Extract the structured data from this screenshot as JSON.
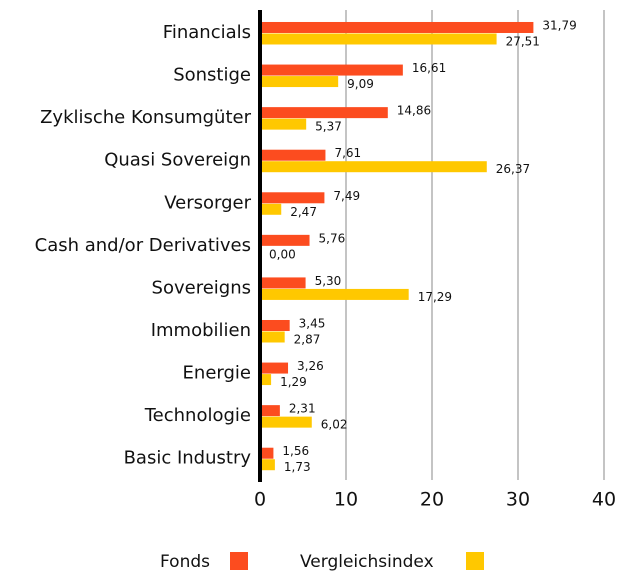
{
  "chart_data": {
    "type": "bar",
    "orientation": "horizontal",
    "categories": [
      "Financials",
      "Sonstige",
      "Zyklische Konsumgüter",
      "Quasi Sovereign",
      "Versorger",
      "Cash and/or Derivatives",
      "Sovereigns",
      "Immobilien",
      "Energie",
      "Technologie",
      "Basic Industry"
    ],
    "series": [
      {
        "name": "Fonds",
        "color": "#fc4c1f",
        "values": [
          31.79,
          16.61,
          14.86,
          7.61,
          7.49,
          5.76,
          5.3,
          3.45,
          3.26,
          2.31,
          1.56
        ],
        "value_labels": [
          "31,79",
          "16,61",
          "14,86",
          "7,61",
          "7,49",
          "5,76",
          "5,30",
          "3,45",
          "3,26",
          "2,31",
          "1,56"
        ]
      },
      {
        "name": "Vergleichsindex",
        "color": "#ffc800",
        "values": [
          27.51,
          9.09,
          5.37,
          26.37,
          2.47,
          0.0,
          17.29,
          2.87,
          1.29,
          6.02,
          1.73
        ],
        "value_labels": [
          "27,51",
          "9,09",
          "5,37",
          "26,37",
          "2,47",
          "0,00",
          "17,29",
          "2,87",
          "1,29",
          "6,02",
          "1,73"
        ]
      }
    ],
    "xlim": [
      0,
      40
    ],
    "xticks": [
      0,
      10,
      20,
      30,
      40
    ],
    "grid": true,
    "legend": "bottom"
  }
}
